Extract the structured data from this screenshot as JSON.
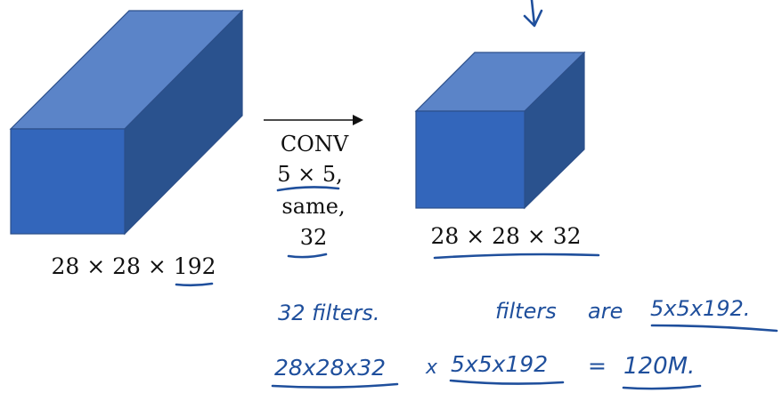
{
  "colors": {
    "cube_front": "#3366bb",
    "cube_top": "#5b84c8",
    "cube_side": "#2a528e",
    "cube_edge": "#2c4f8a",
    "ink": "#1f4f9c",
    "text": "#111111"
  },
  "input_volume": {
    "label": "28 × 28 × 192"
  },
  "conv_op": {
    "line1": "CONV",
    "line2": "5 × 5,",
    "line3": "same,",
    "line4": "32"
  },
  "output_volume": {
    "label": "28 × 28 × 32"
  },
  "notes": {
    "filters_count": "32 filters.",
    "filters_are_word1": "filters",
    "filters_are_word2": "are",
    "filter_size": "5x5x192.",
    "mult_left": "28x28x32",
    "mult_op": "x",
    "mult_right": "5x5x192",
    "equals": "=",
    "result": "120M."
  }
}
